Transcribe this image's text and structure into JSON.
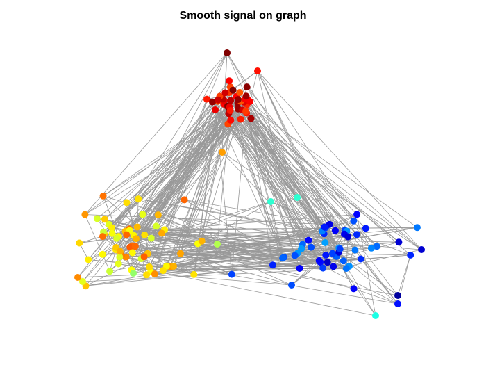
{
  "title": "Smooth signal on graph",
  "graph": {
    "edge_color": "#999999",
    "colormap": "jet",
    "clusters": [
      {
        "name": "top",
        "center": [
          335,
          150
        ],
        "spread": [
          18,
          14
        ],
        "count": 42,
        "signal": 0.9
      },
      {
        "name": "left",
        "center": [
          185,
          345
        ],
        "spread": [
          40,
          26
        ],
        "count": 60,
        "signal": 0.68
      },
      {
        "name": "right",
        "center": [
          480,
          360
        ],
        "spread": [
          42,
          30
        ],
        "count": 48,
        "signal": 0.18
      }
    ]
  }
}
